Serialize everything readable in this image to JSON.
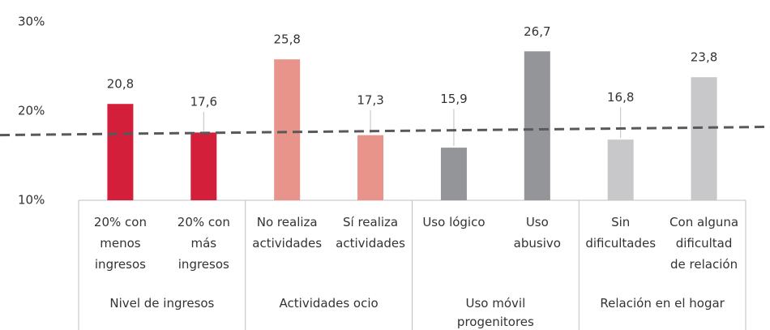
{
  "chart_data": {
    "type": "bar",
    "categories": [
      "20% con\nmenos\ningresos",
      "20% con\nmás\ningresos",
      "No realiza\nactividades",
      "Sí realiza\nactividades",
      "Uso lógico",
      "Uso\nabusivo",
      "Sin\ndificultades",
      "Con alguna\ndificultad\nde relación"
    ],
    "values": [
      20.8,
      17.6,
      25.8,
      17.3,
      15.9,
      26.7,
      16.8,
      23.8
    ],
    "value_labels": [
      "20,8",
      "17,6",
      "25,8",
      "17,3",
      "15,9",
      "26,7",
      "16,8",
      "23,8"
    ],
    "colors": [
      "#d41f3a",
      "#d41f3a",
      "#e8948a",
      "#e8948a",
      "#939598",
      "#939598",
      "#c8c8ca",
      "#c8c8ca"
    ],
    "groups": [
      {
        "name": "Nivel de ingresos",
        "span": 2
      },
      {
        "name": "Actividades ocio",
        "span": 2
      },
      {
        "name": "Uso móvil\nprogenitores",
        "span": 2
      },
      {
        "name": "Relación en el hogar",
        "span": 2
      }
    ],
    "reference_line": {
      "start": 17.4,
      "end": 18.2,
      "color": "#595959"
    },
    "ylim": [
      10,
      30
    ],
    "yticks": [
      {
        "value": 10,
        "label": "10%"
      },
      {
        "value": 20,
        "label": "20%"
      },
      {
        "value": 30,
        "label": "30%"
      }
    ]
  }
}
